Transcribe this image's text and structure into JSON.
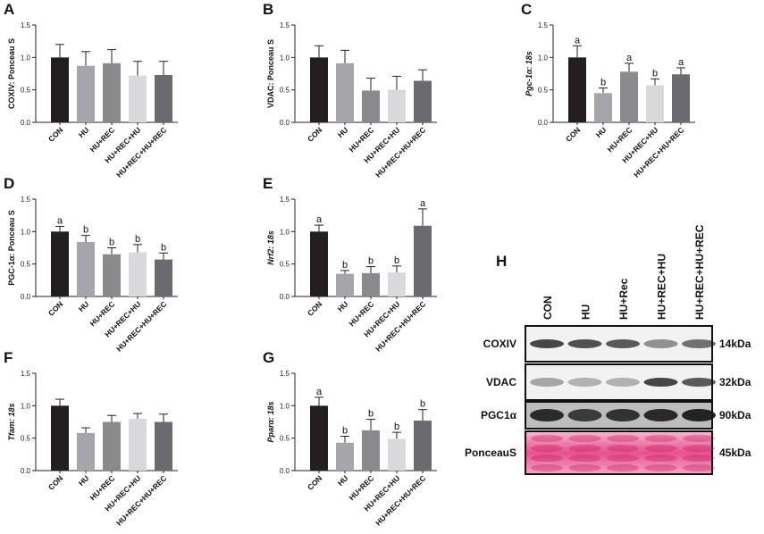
{
  "chart_data": [
    {
      "panel": "A",
      "type": "bar",
      "y_label": "COXIV: Ponceau S",
      "italic_label": false,
      "categories": [
        "CON",
        "HU",
        "HU+REC",
        "HU+REC+HU",
        "HU+REC+HU+REC"
      ],
      "values": [
        1.0,
        0.87,
        0.91,
        0.72,
        0.73
      ],
      "errors": [
        0.2,
        0.22,
        0.21,
        0.22,
        0.21
      ],
      "colors": [
        "#231f20",
        "#a6a5ab",
        "#8a898e",
        "#d9d9db",
        "#6b6b6f"
      ],
      "ylim": [
        0,
        1.5
      ],
      "yticks": [
        {
          "value": 0,
          "label": "0.0"
        },
        {
          "value": 0.5,
          "label": "0.5"
        },
        {
          "value": 1,
          "label": "1.0"
        },
        {
          "value": 1.5,
          "label": "1.5"
        }
      ]
    },
    {
      "panel": "B",
      "type": "bar",
      "y_label": "VDAC: Ponceau S",
      "italic_label": false,
      "categories": [
        "CON",
        "HU",
        "HU+REC",
        "HU+REC+HU",
        "HU+REC+HU+REC"
      ],
      "values": [
        1.0,
        0.91,
        0.49,
        0.5,
        0.64
      ],
      "errors": [
        0.18,
        0.2,
        0.19,
        0.21,
        0.17
      ],
      "colors": [
        "#231f20",
        "#a6a5ab",
        "#8a898e",
        "#d9d9db",
        "#6b6b6f"
      ],
      "ylim": [
        0,
        1.5
      ],
      "yticks": [
        {
          "value": 0,
          "label": "0.0"
        },
        {
          "value": 0.5,
          "label": "0.5"
        },
        {
          "value": 1,
          "label": "1.0"
        },
        {
          "value": 1.5,
          "label": "1.5"
        }
      ]
    },
    {
      "panel": "C",
      "type": "bar",
      "y_label": "Pgc-1α: 18s",
      "italic_label": true,
      "categories": [
        "CON",
        "HU",
        "HU+REC",
        "HU+REC+HU",
        "HU+REC+HU+REC"
      ],
      "values": [
        1.0,
        0.45,
        0.78,
        0.57,
        0.74
      ],
      "errors": [
        0.18,
        0.08,
        0.13,
        0.1,
        0.1
      ],
      "annotations": [
        "a",
        "b",
        "a",
        "b",
        "a"
      ],
      "colors": [
        "#231f20",
        "#a6a5ab",
        "#8a898e",
        "#d9d9db",
        "#6b6b6f"
      ],
      "ylim": [
        0,
        1.5
      ],
      "yticks": [
        {
          "value": 0,
          "label": "0.0"
        },
        {
          "value": 0.5,
          "label": "0.5"
        },
        {
          "value": 1,
          "label": "1.0"
        },
        {
          "value": 1.5,
          "label": "1.5"
        }
      ]
    },
    {
      "panel": "D",
      "type": "bar",
      "y_label": "PGC-1α: Ponceau S",
      "italic_label": false,
      "categories": [
        "CON",
        "HU",
        "HU+REC",
        "HU+REC+HU",
        "HU+REC+HU+REC"
      ],
      "values": [
        1.0,
        0.84,
        0.65,
        0.68,
        0.57
      ],
      "errors": [
        0.08,
        0.1,
        0.1,
        0.12,
        0.1
      ],
      "annotations": [
        "a",
        "b",
        "b",
        "b",
        "b"
      ],
      "colors": [
        "#231f20",
        "#a6a5ab",
        "#8a898e",
        "#d9d9db",
        "#6b6b6f"
      ],
      "ylim": [
        0,
        1.5
      ],
      "yticks": [
        {
          "value": 0,
          "label": "0.0"
        },
        {
          "value": 0.5,
          "label": "0.5"
        },
        {
          "value": 1,
          "label": "1.0"
        },
        {
          "value": 1.5,
          "label": "1.5"
        }
      ]
    },
    {
      "panel": "E",
      "type": "bar",
      "y_label": "Nrf2: 18s",
      "italic_label": true,
      "categories": [
        "CON",
        "HU",
        "HU+REC",
        "HU+REC+HU",
        "HU+REC+HU+REC"
      ],
      "values": [
        1.0,
        0.35,
        0.36,
        0.37,
        1.09
      ],
      "errors": [
        0.1,
        0.05,
        0.1,
        0.1,
        0.26
      ],
      "annotations": [
        "a",
        "b",
        "b",
        "b",
        "a"
      ],
      "colors": [
        "#231f20",
        "#a6a5ab",
        "#8a898e",
        "#d9d9db",
        "#6b6b6f"
      ],
      "ylim": [
        0,
        1.5
      ],
      "yticks": [
        {
          "value": 0,
          "label": "0.0"
        },
        {
          "value": 0.5,
          "label": "0.5"
        },
        {
          "value": 1,
          "label": "1.0"
        },
        {
          "value": 1.5,
          "label": "1.5"
        }
      ]
    },
    {
      "panel": "F",
      "type": "bar",
      "y_label": "Tfam: 18s",
      "italic_label": true,
      "categories": [
        "CON",
        "HU",
        "HU+REC",
        "HU+REC+HU",
        "HU+REC+HU+REC"
      ],
      "values": [
        1.0,
        0.58,
        0.75,
        0.8,
        0.75
      ],
      "errors": [
        0.1,
        0.08,
        0.1,
        0.08,
        0.12
      ],
      "colors": [
        "#231f20",
        "#a6a5ab",
        "#8a898e",
        "#d9d9db",
        "#6b6b6f"
      ],
      "ylim": [
        0,
        1.5
      ],
      "yticks": [
        {
          "value": 0,
          "label": "0.0"
        },
        {
          "value": 0.5,
          "label": "0.5"
        },
        {
          "value": 1,
          "label": "1.0"
        },
        {
          "value": 1.5,
          "label": "1.5"
        }
      ]
    },
    {
      "panel": "G",
      "type": "bar",
      "y_label": "Pparα: 18s",
      "italic_label": true,
      "categories": [
        "CON",
        "HU",
        "HU+REC",
        "HU+REC+HU",
        "HU+REC+HU+REC"
      ],
      "values": [
        1.0,
        0.43,
        0.62,
        0.49,
        0.77
      ],
      "errors": [
        0.13,
        0.1,
        0.17,
        0.1,
        0.17
      ],
      "annotations": [
        "a",
        "b",
        "b",
        "b",
        "b"
      ],
      "colors": [
        "#231f20",
        "#a6a5ab",
        "#8a898e",
        "#d9d9db",
        "#6b6b6f"
      ],
      "ylim": [
        0,
        1.5
      ],
      "yticks": [
        {
          "value": 0,
          "label": "0.0"
        },
        {
          "value": 0.5,
          "label": "0.5"
        },
        {
          "value": 1,
          "label": "1.0"
        },
        {
          "value": 1.5,
          "label": "1.5"
        }
      ]
    }
  ],
  "blot": {
    "panel": "H",
    "lanes": [
      "CON",
      "HU",
      "HU+Rec",
      "HU+REC+HU",
      "HU+REC+HU+REC"
    ],
    "rows": [
      {
        "label": "COXIV",
        "size": "14kDa"
      },
      {
        "label": "VDAC",
        "size": "32kDa"
      },
      {
        "label": "PGC1α",
        "size": "90kDa"
      },
      {
        "label": "PonceauS",
        "size": "45kDa"
      }
    ]
  }
}
